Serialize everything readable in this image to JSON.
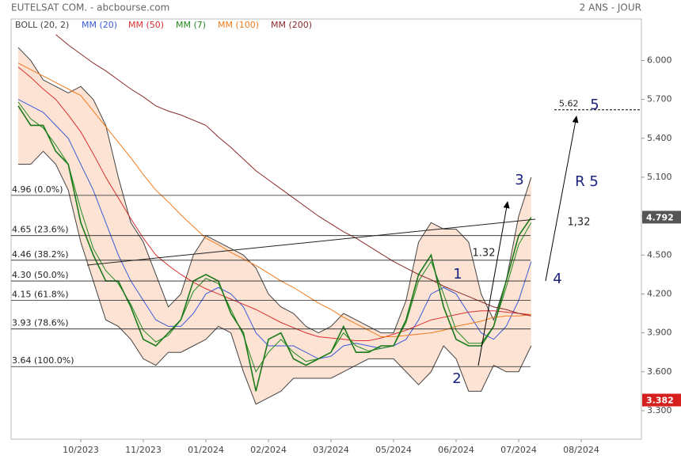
{
  "chart_data": {
    "type": "line",
    "title": "EUTELSAT COM. - abcbourse.com",
    "subtitle": "2 ANS - JOUR",
    "categories": [
      null,
      null,
      null,
      null,
      null,
      "10/2023",
      null,
      null,
      null,
      null,
      "11/2023",
      null,
      null,
      null,
      null,
      "01/2024",
      null,
      null,
      null,
      null,
      "02/2024",
      null,
      null,
      null,
      null,
      "03/2024",
      null,
      null,
      null,
      null,
      "05/2024",
      null,
      null,
      null,
      null,
      "06/2024",
      null,
      null,
      null,
      null,
      "07/2024",
      null,
      null,
      null,
      null,
      "08/2024"
    ],
    "ylim": [
      3.08,
      6.32
    ],
    "yticks": [
      {
        "value": 6.0,
        "label": "6.000"
      },
      {
        "value": 5.7,
        "label": "5.700"
      },
      {
        "value": 5.4,
        "label": "5.400"
      },
      {
        "value": 5.1,
        "label": "5.100"
      },
      {
        "value": 4.8,
        "label": "4.800"
      },
      {
        "value": 4.5,
        "label": "4.500"
      },
      {
        "value": 4.2,
        "label": "4.200"
      },
      {
        "value": 3.9,
        "label": "3.900"
      },
      {
        "value": 3.6,
        "label": "3.600"
      },
      {
        "value": 3.3,
        "label": "3.300"
      }
    ],
    "price": {
      "color": "#1b7a1b",
      "values": [
        5.65,
        5.5,
        5.5,
        5.3,
        5.2,
        4.75,
        4.5,
        4.3,
        4.3,
        4.1,
        3.85,
        3.8,
        3.9,
        4.0,
        4.3,
        4.35,
        4.3,
        4.05,
        3.9,
        3.45,
        3.85,
        3.9,
        3.7,
        3.65,
        3.7,
        3.75,
        3.95,
        3.75,
        3.75,
        3.8,
        3.8,
        4.0,
        4.35,
        4.5,
        4.1,
        3.85,
        3.8,
        3.8,
        3.95,
        4.3,
        4.65,
        4.79,
        null,
        null,
        null,
        null
      ]
    },
    "bollinger": {
      "name": "BOLL (20, 2)",
      "color": "#444444",
      "fill": "#fde3d3",
      "upper": [
        6.1,
        6.0,
        5.85,
        5.8,
        5.75,
        5.8,
        5.7,
        5.5,
        5.1,
        4.75,
        4.6,
        4.35,
        4.1,
        4.2,
        4.5,
        4.65,
        4.6,
        4.55,
        4.5,
        4.4,
        4.2,
        4.1,
        4.05,
        3.95,
        3.9,
        3.95,
        4.05,
        4.0,
        3.95,
        3.9,
        3.9,
        4.15,
        4.6,
        4.75,
        4.7,
        4.7,
        4.6,
        4.2,
        4.0,
        4.3,
        4.8,
        5.1,
        null,
        null,
        null,
        null
      ],
      "lower": [
        5.2,
        5.2,
        5.3,
        5.2,
        5.0,
        4.6,
        4.3,
        4.0,
        3.95,
        3.85,
        3.7,
        3.65,
        3.75,
        3.75,
        3.8,
        3.85,
        3.95,
        3.9,
        3.6,
        3.35,
        3.4,
        3.45,
        3.55,
        3.55,
        3.55,
        3.55,
        3.6,
        3.65,
        3.7,
        3.7,
        3.7,
        3.6,
        3.5,
        3.6,
        3.8,
        3.7,
        3.45,
        3.45,
        3.65,
        3.6,
        3.6,
        3.8,
        null,
        null,
        null,
        null
      ]
    },
    "series": [
      {
        "name": "MM (20)",
        "color": "#3a5bd9",
        "values": [
          5.7,
          5.65,
          5.6,
          5.5,
          5.4,
          5.2,
          5.0,
          4.75,
          4.5,
          4.3,
          4.15,
          4.0,
          3.95,
          3.95,
          4.05,
          4.2,
          4.25,
          4.2,
          4.1,
          3.9,
          3.8,
          3.8,
          3.8,
          3.75,
          3.7,
          3.72,
          3.8,
          3.82,
          3.8,
          3.78,
          3.8,
          3.85,
          4.0,
          4.2,
          4.25,
          4.2,
          4.05,
          3.9,
          3.85,
          3.95,
          4.15,
          4.45,
          null,
          null,
          null,
          null
        ]
      },
      {
        "name": "MM (50)",
        "color": "#d83030",
        "values": [
          5.95,
          5.87,
          5.78,
          5.7,
          5.58,
          5.45,
          5.28,
          5.1,
          4.94,
          4.78,
          4.63,
          4.5,
          4.42,
          4.35,
          4.29,
          4.24,
          4.2,
          4.16,
          4.12,
          4.08,
          4.03,
          3.98,
          3.94,
          3.9,
          3.87,
          3.86,
          3.85,
          3.84,
          3.84,
          3.86,
          3.89,
          3.92,
          3.96,
          4.0,
          4.02,
          4.04,
          4.06,
          4.07,
          4.07,
          4.06,
          4.05,
          4.04,
          null,
          null,
          null,
          null
        ]
      },
      {
        "name": "MM (7)",
        "color": "#1f8a1f",
        "values": [
          5.68,
          5.55,
          5.48,
          5.35,
          5.2,
          4.85,
          4.55,
          4.38,
          4.28,
          4.12,
          3.92,
          3.83,
          3.88,
          4.0,
          4.22,
          4.32,
          4.28,
          4.08,
          3.88,
          3.6,
          3.75,
          3.85,
          3.75,
          3.68,
          3.7,
          3.75,
          3.9,
          3.8,
          3.76,
          3.78,
          3.8,
          3.98,
          4.3,
          4.45,
          4.2,
          3.92,
          3.82,
          3.82,
          3.95,
          4.25,
          4.58,
          4.75,
          null,
          null,
          null,
          null
        ]
      },
      {
        "name": "MM (100)",
        "color": "#f07c1e",
        "values": [
          5.98,
          5.93,
          5.88,
          5.83,
          5.78,
          5.73,
          5.61,
          5.49,
          5.37,
          5.25,
          5.12,
          5.0,
          4.91,
          4.81,
          4.72,
          4.63,
          4.58,
          4.52,
          4.47,
          4.42,
          4.36,
          4.3,
          4.25,
          4.19,
          4.13,
          4.08,
          4.02,
          3.97,
          3.92,
          3.87,
          3.87,
          3.88,
          3.89,
          3.9,
          3.92,
          3.95,
          3.97,
          3.99,
          4.02,
          4.03,
          4.03,
          4.04,
          null,
          null,
          null,
          null
        ]
      },
      {
        "name": "MM (200)",
        "color": "#8b2a2a",
        "values": [
          null,
          null,
          null,
          6.2,
          6.12,
          6.05,
          5.98,
          5.92,
          5.85,
          5.78,
          5.72,
          5.65,
          5.61,
          5.58,
          5.54,
          5.5,
          5.41,
          5.33,
          5.24,
          5.15,
          5.08,
          5.01,
          4.94,
          4.87,
          4.8,
          4.74,
          4.68,
          4.63,
          4.57,
          4.51,
          4.45,
          4.4,
          4.35,
          4.31,
          4.26,
          4.22,
          4.18,
          4.14,
          4.1,
          4.08,
          4.05,
          4.03,
          null,
          null,
          null,
          null
        ]
      }
    ],
    "fib_levels": [
      {
        "value": 4.96,
        "label": "4.96 (0.0%)"
      },
      {
        "value": 4.65,
        "label": "4.65 (23.6%)"
      },
      {
        "value": 4.46,
        "label": "4.46 (38.2%)"
      },
      {
        "value": 4.3,
        "label": "4.30 (50.0%)"
      },
      {
        "value": 4.15,
        "label": "4.15 (61.8%)"
      },
      {
        "value": 3.93,
        "label": "3.93 (78.6%)"
      },
      {
        "value": 3.64,
        "label": "3.64 (100.0%)"
      }
    ],
    "price_tags": [
      {
        "value": 4.792,
        "color": "#555555"
      },
      {
        "value": 3.382,
        "color": "#d62020"
      }
    ],
    "target": {
      "value": 5.62,
      "label": "5.62"
    },
    "annotations": [
      "1",
      "2",
      "3",
      "4",
      "5",
      "R 5",
      "1,32",
      "1.32"
    ]
  }
}
